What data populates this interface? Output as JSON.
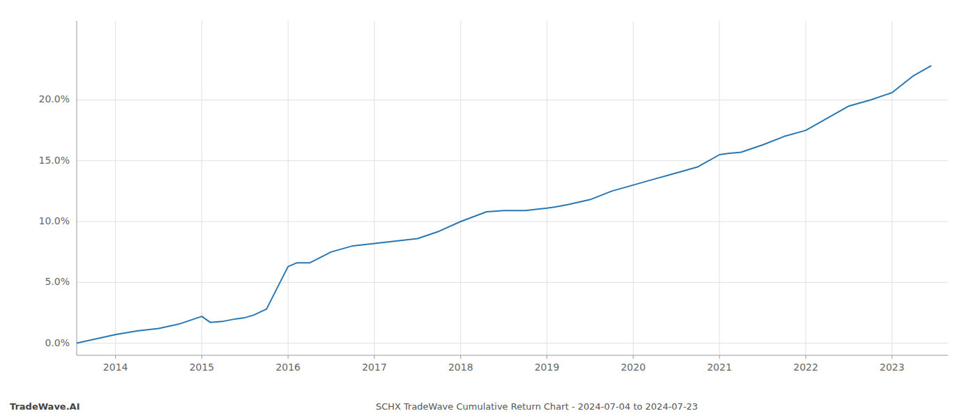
{
  "chart_data": {
    "type": "line",
    "title": "SCHX TradeWave Cumulative Return Chart - 2024-07-04 to 2024-07-23",
    "annotations": [
      "TradeWave.AI"
    ],
    "color": "#2777b4",
    "x": [
      2013.55,
      2014.0,
      2014.25,
      2014.5,
      2014.75,
      2015.0,
      2015.1,
      2015.25,
      2015.4,
      2015.5,
      2015.6,
      2015.75,
      2016.0,
      2016.1,
      2016.25,
      2016.5,
      2016.75,
      2017.0,
      2017.25,
      2017.5,
      2017.75,
      2018.0,
      2018.15,
      2018.3,
      2018.5,
      2018.75,
      2019.0,
      2019.1,
      2019.25,
      2019.5,
      2019.75,
      2020.0,
      2020.25,
      2020.5,
      2020.75,
      2021.0,
      2021.1,
      2021.25,
      2021.5,
      2021.75,
      2022.0,
      2022.25,
      2022.5,
      2022.75,
      2023.0,
      2023.25,
      2023.45
    ],
    "values": [
      0.0,
      0.007,
      0.01,
      0.012,
      0.016,
      0.022,
      0.017,
      0.018,
      0.02,
      0.021,
      0.023,
      0.028,
      0.063,
      0.066,
      0.066,
      0.075,
      0.08,
      0.082,
      0.084,
      0.086,
      0.092,
      0.1,
      0.104,
      0.108,
      0.109,
      0.109,
      0.111,
      0.112,
      0.114,
      0.118,
      0.125,
      0.13,
      0.135,
      0.14,
      0.145,
      0.155,
      0.156,
      0.157,
      0.163,
      0.17,
      0.175,
      0.185,
      0.195,
      0.2,
      0.206,
      0.22,
      0.228
    ],
    "xlim": [
      2013.55,
      2023.65
    ],
    "ylim": [
      -0.01,
      0.265
    ],
    "xticks": [
      2014,
      2015,
      2016,
      2017,
      2018,
      2019,
      2020,
      2021,
      2022,
      2023
    ],
    "yticks": [
      {
        "value": 0.0,
        "label": "0.0%"
      },
      {
        "value": 0.05,
        "label": "5.0%"
      },
      {
        "value": 0.1,
        "label": "10.0%"
      },
      {
        "value": 0.15,
        "label": "15.0%"
      },
      {
        "value": 0.2,
        "label": "20.0%"
      }
    ],
    "grid": true
  }
}
